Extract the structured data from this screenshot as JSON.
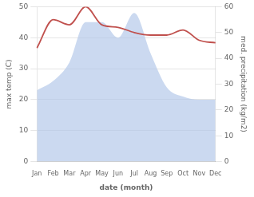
{
  "chart_data": {
    "type": "line",
    "xlabel": "date (month)",
    "ylabel": "max temp (C)",
    "y2label": "med. precipitation (kg/m2)",
    "categories": [
      "Jan",
      "Feb",
      "Mar",
      "Apr",
      "May",
      "Jun",
      "Jul",
      "Aug",
      "Sep",
      "Oct",
      "Nov",
      "Dec"
    ],
    "series": [
      {
        "type": "area",
        "color": "#afc4e8",
        "values": [
          23,
          26,
          32,
          45,
          45,
          40,
          48,
          35,
          24,
          21,
          20,
          20
        ]
      },
      {
        "type": "line",
        "color": "#c0504d",
        "axis": "y2",
        "values": [
          44,
          55,
          53,
          60,
          53,
          52,
          50,
          49,
          49,
          51,
          47,
          46
        ]
      }
    ],
    "ylim": [
      0,
      50
    ],
    "yticks": [
      0,
      10,
      20,
      30,
      40,
      50
    ],
    "y2lim": [
      0,
      60
    ],
    "y2ticks": [
      0,
      10,
      20,
      30,
      40,
      50,
      60
    ],
    "grid": "y"
  }
}
